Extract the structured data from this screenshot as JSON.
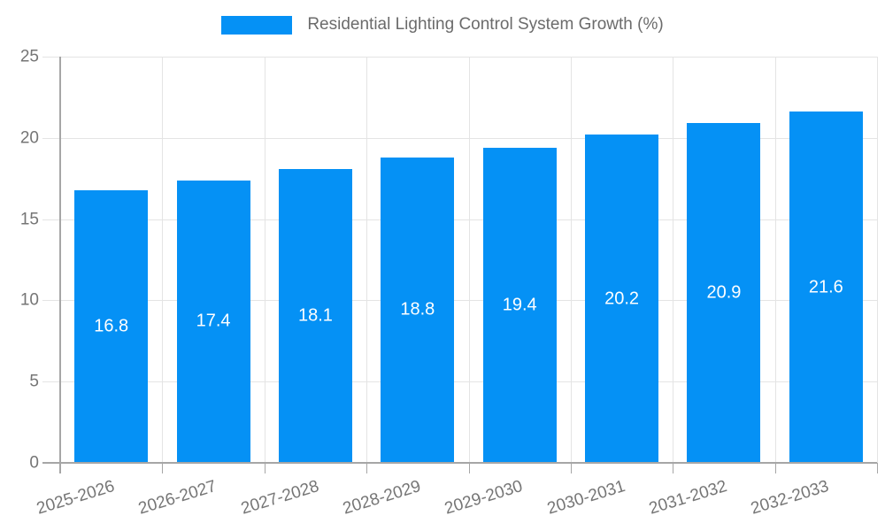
{
  "chart_data": {
    "type": "bar",
    "title": "Residential Lighting Control System Growth (%)",
    "categories": [
      "2025-2026",
      "2026-2027",
      "2027-2028",
      "2028-2029",
      "2029-2030",
      "2030-2031",
      "2031-2032",
      "2032-2033"
    ],
    "values": [
      16.8,
      17.4,
      18.1,
      18.8,
      19.4,
      20.2,
      20.9,
      21.6
    ],
    "value_labels": [
      "16.8",
      "17.4",
      "18.1",
      "18.8",
      "19.4",
      "20.2",
      "20.9",
      "21.6"
    ],
    "xlabel": "",
    "ylabel": "",
    "ylim": [
      0,
      25
    ],
    "y_ticks": [
      0,
      5,
      10,
      15,
      20,
      25
    ],
    "grid": true,
    "legend_position": "top",
    "x_label_rotation_deg": -17,
    "colors": {
      "bar": "#0591f5",
      "bar_label": "#ffffff",
      "axis_text": "#757575",
      "title_text": "#6b6b6b",
      "gridline": "#e4e4e4",
      "axis_line": "#a6a6a6"
    }
  }
}
